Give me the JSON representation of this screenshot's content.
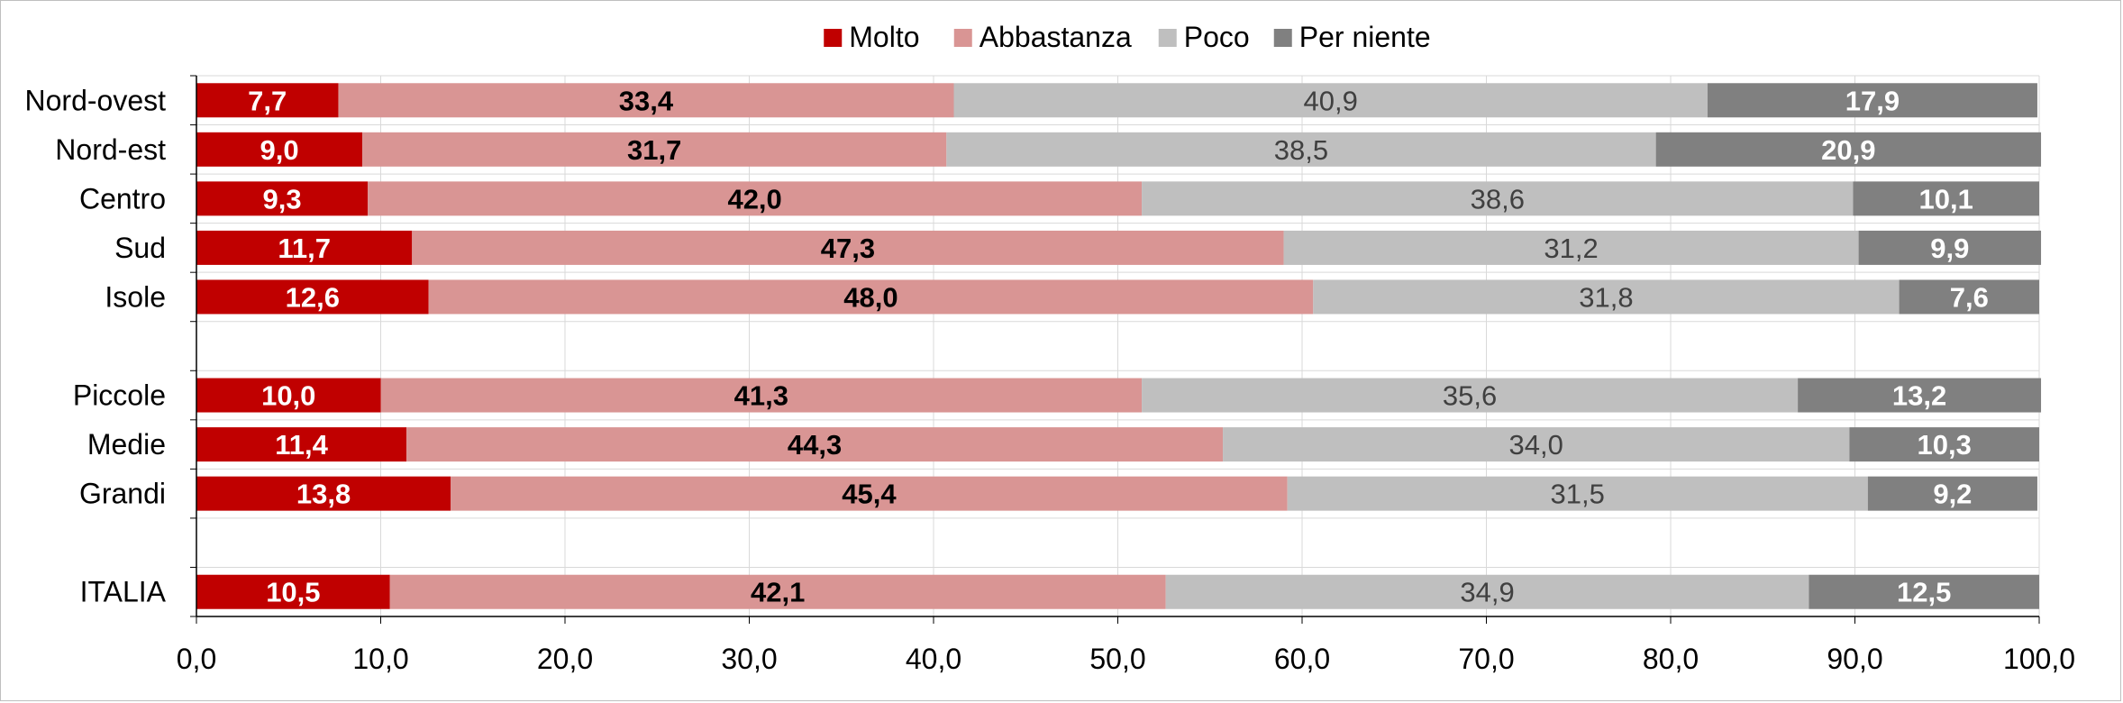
{
  "chart_data": {
    "type": "bar",
    "orientation": "horizontal",
    "stacked": true,
    "title": "",
    "xlabel": "",
    "ylabel": "",
    "xlim": [
      0,
      100
    ],
    "x_ticks": [
      "0,0",
      "10,0",
      "20,0",
      "30,0",
      "40,0",
      "50,0",
      "60,0",
      "70,0",
      "80,0",
      "90,0",
      "100,0"
    ],
    "grid": true,
    "legend_position": "top-center",
    "categories": [
      "Nord-ovest",
      "Nord-est",
      "Centro",
      "Sud",
      "Isole",
      "",
      "Piccole",
      "Medie",
      "Grandi",
      "",
      "ITALIA"
    ],
    "series": [
      {
        "name": "Molto",
        "color": "#c00000",
        "label_color": "#ffffff",
        "label_weight": "bold",
        "values": [
          7.7,
          9.0,
          9.3,
          11.7,
          12.6,
          null,
          10.0,
          11.4,
          13.8,
          null,
          10.5
        ],
        "labels": [
          "7,7",
          "9,0",
          "9,3",
          "11,7",
          "12,6",
          "",
          "10,0",
          "11,4",
          "13,8",
          "",
          "10,5"
        ]
      },
      {
        "name": "Abbastanza",
        "color": "#d99594",
        "label_color": "#000000",
        "label_weight": "bold",
        "values": [
          33.4,
          31.7,
          42.0,
          47.3,
          48.0,
          null,
          41.3,
          44.3,
          45.4,
          null,
          42.1
        ],
        "labels": [
          "33,4",
          "31,7",
          "42,0",
          "47,3",
          "48,0",
          "",
          "41,3",
          "44,3",
          "45,4",
          "",
          "42,1"
        ]
      },
      {
        "name": "Poco",
        "color": "#bfbfbf",
        "label_color": "#404040",
        "label_weight": "normal",
        "values": [
          40.9,
          38.5,
          38.6,
          31.2,
          31.8,
          null,
          35.6,
          34.0,
          31.5,
          null,
          34.9
        ],
        "labels": [
          "40,9",
          "38,5",
          "38,6",
          "31,2",
          "31,8",
          "",
          "35,6",
          "34,0",
          "31,5",
          "",
          "34,9"
        ]
      },
      {
        "name": "Per niente",
        "color": "#808080",
        "label_color": "#ffffff",
        "label_weight": "bold",
        "values": [
          17.9,
          20.9,
          10.1,
          9.9,
          7.6,
          null,
          13.2,
          10.3,
          9.2,
          null,
          12.5
        ],
        "labels": [
          "17,9",
          "20,9",
          "10,1",
          "9,9",
          "7,6",
          "",
          "13,2",
          "10,3",
          "9,2",
          "",
          "12,5"
        ]
      }
    ]
  }
}
